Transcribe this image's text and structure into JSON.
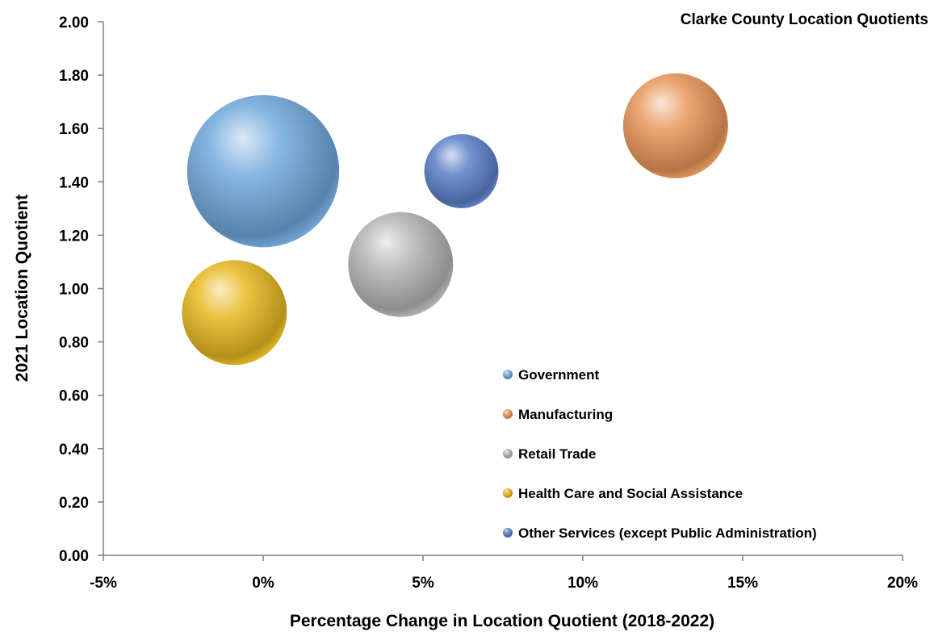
{
  "chart_data": {
    "type": "bubble",
    "title": "Clarke County Location Quotients",
    "xlabel": "Percentage Change in Location Quotient (2018-2022)",
    "ylabel": "2021 Location Quotient",
    "xlim": [
      -5,
      20
    ],
    "ylim": [
      0,
      2
    ],
    "x_ticks": [
      "-5%",
      "0%",
      "5%",
      "10%",
      "15%",
      "20%"
    ],
    "y_ticks": [
      "0.00",
      "0.20",
      "0.40",
      "0.60",
      "0.80",
      "1.00",
      "1.20",
      "1.40",
      "1.60",
      "1.80",
      "2.00"
    ],
    "grid": false,
    "legend_position": "bottom-right inside",
    "series": [
      {
        "name": "Government",
        "x": 0.0,
        "y": 1.44,
        "size": 2.1,
        "color": "#6fa8dc"
      },
      {
        "name": "Manufacturing",
        "x": 12.9,
        "y": 1.61,
        "size": 1.0,
        "color": "#e8965a"
      },
      {
        "name": "Retail Trade",
        "x": 4.3,
        "y": 1.09,
        "size": 1.0,
        "color": "#b5b5b5"
      },
      {
        "name": "Health Care and Social Assistance",
        "x": -0.9,
        "y": 0.91,
        "size": 1.0,
        "color": "#e8b820"
      },
      {
        "name": "Other Services (except Public Administration)",
        "x": 6.2,
        "y": 1.44,
        "size": 0.5,
        "color": "#5b80c8"
      }
    ]
  }
}
